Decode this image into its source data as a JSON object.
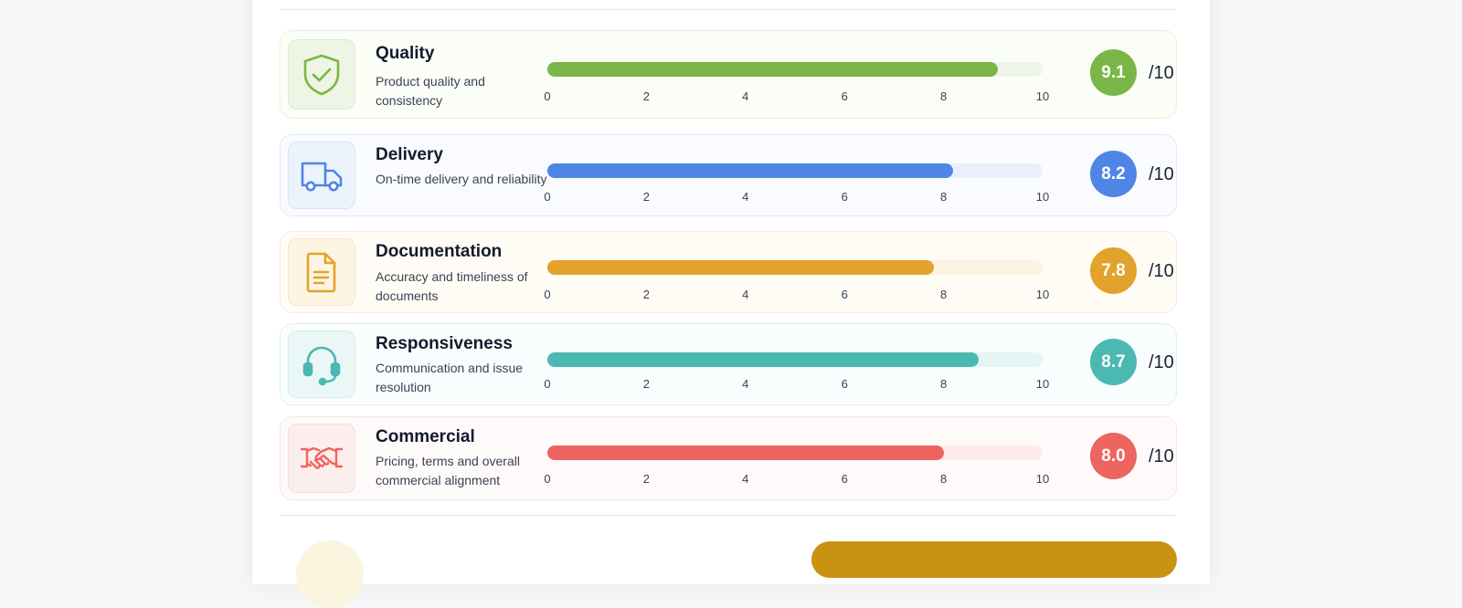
{
  "criteria": [
    {
      "title": "Quality",
      "description": "Product quality and consistency",
      "score": 9.1,
      "score_text": "9.1",
      "max_text": "/10",
      "icon": "shield-check-icon",
      "color": "#7ab648",
      "track_color": "#eef5e6",
      "card_bg": "#fbfdf7",
      "card_border": "#eaf1df",
      "icon_bg": "#eef5e4",
      "icon_border": "#dfe9d2"
    },
    {
      "title": "Delivery",
      "description": "On-time delivery and reliability",
      "score": 8.2,
      "score_text": "8.2",
      "max_text": "/10",
      "icon": "truck-icon",
      "color": "#4f86e5",
      "track_color": "#e9f0fb",
      "card_bg": "#f9fbfe",
      "card_border": "#e2e9f5",
      "icon_bg": "#edf3fc",
      "icon_border": "#d9e4f5"
    },
    {
      "title": "Documentation",
      "description": "Accuracy and timeliness of documents",
      "score": 7.8,
      "score_text": "7.8",
      "max_text": "/10",
      "icon": "document-icon",
      "color": "#e3a22b",
      "track_color": "#fbf2e0",
      "card_bg": "#fffcf6",
      "card_border": "#f5ecd8",
      "icon_bg": "#fdf4e2",
      "icon_border": "#f2e5c8"
    },
    {
      "title": "Responsiveness",
      "description": "Communication and issue resolution",
      "score": 8.7,
      "score_text": "8.7",
      "max_text": "/10",
      "icon": "headset-icon",
      "color": "#4cb8b2",
      "track_color": "#e4f5f4",
      "card_bg": "#f8fdfd",
      "card_border": "#dff0ee",
      "icon_bg": "#ebf7f6",
      "icon_border": "#d6ecea"
    },
    {
      "title": "Commercial",
      "description": "Pricing, terms and overall commercial alignment",
      "score": 8.0,
      "score_text": "8.0",
      "max_text": "/10",
      "icon": "handshake-icon",
      "color": "#ee6460",
      "track_color": "#fcebea",
      "card_bg": "#fffafa",
      "card_border": "#f6e4e3",
      "icon_bg": "#fdeeee",
      "icon_border": "#f3dcdb"
    }
  ],
  "scale": {
    "min": 0,
    "max": 10,
    "ticks": [
      "0",
      "2",
      "4",
      "6",
      "8",
      "10"
    ]
  }
}
